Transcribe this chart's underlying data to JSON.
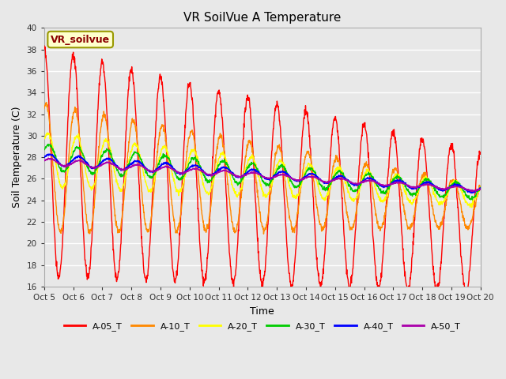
{
  "title": "VR SoilVue A Temperature",
  "xlabel": "Time",
  "ylabel": "Soil Temperature (C)",
  "ylim": [
    16,
    40
  ],
  "yticks": [
    16,
    18,
    20,
    22,
    24,
    26,
    28,
    30,
    32,
    34,
    36,
    38,
    40
  ],
  "fig_bg": "#e8e8e8",
  "plot_bg": "#e8e8e8",
  "grid_color": "#ffffff",
  "series_colors": {
    "A-05_T": "#ff0000",
    "A-10_T": "#ff8800",
    "A-20_T": "#ffff00",
    "A-30_T": "#00cc00",
    "A-40_T": "#0000ff",
    "A-50_T": "#aa00aa"
  },
  "annotation_box": {
    "text": "VR_soilvue",
    "facecolor": "#ffffcc",
    "edgecolor": "#999900",
    "textcolor": "#8B0000",
    "fontsize": 9,
    "fontweight": "bold"
  },
  "xtick_labels": [
    "Oct 5",
    "Oct 6",
    "Oct 7",
    "Oct 8",
    "Oct 9",
    "Oct 10",
    "Oct 11",
    "Oct 12",
    "Oct 13",
    "Oct 14",
    "Oct 15",
    "Oct 16",
    "Oct 17",
    "Oct 18",
    "Oct 19",
    "Oct 20"
  ]
}
